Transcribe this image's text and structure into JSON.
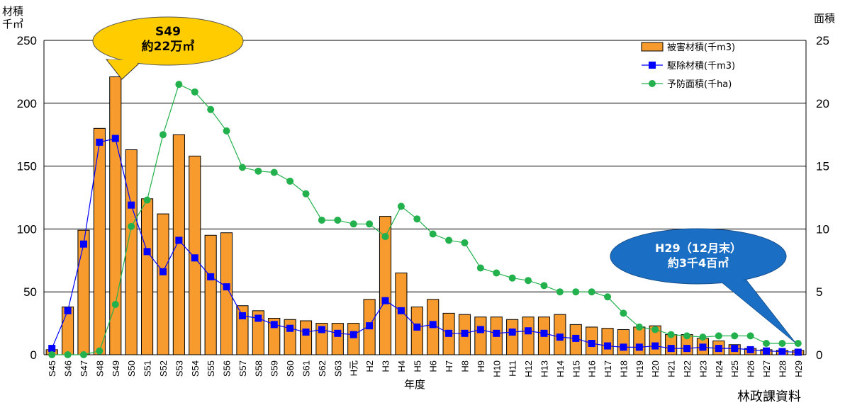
{
  "chart_data": {
    "type": "bar",
    "categories": [
      "S45",
      "S46",
      "S47",
      "S48",
      "S49",
      "S50",
      "S51",
      "S52",
      "S53",
      "S54",
      "S55",
      "S56",
      "S57",
      "S58",
      "S59",
      "S60",
      "S61",
      "S62",
      "S63",
      "H元",
      "H2",
      "H3",
      "H4",
      "H5",
      "H6",
      "H7",
      "H8",
      "H9",
      "H10",
      "H11",
      "H12",
      "H13",
      "H14",
      "H15",
      "H16",
      "H17",
      "H18",
      "H19",
      "H20",
      "H21",
      "H22",
      "H23",
      "H24",
      "H25",
      "H26",
      "H27",
      "H28",
      "H29"
    ],
    "xlabel": "年度",
    "ylabel_left": [
      "材積",
      "千㎥"
    ],
    "ylabel_right": "面積",
    "ylim_left": [
      0,
      250
    ],
    "ylim_right": [
      0,
      25
    ],
    "yticks_left": [
      "0",
      "50",
      "100",
      "150",
      "200",
      "250"
    ],
    "yticks_right": [
      "0",
      "5",
      "10",
      "15",
      "20",
      "25"
    ],
    "grid": true,
    "legend_position": "top-right",
    "series": [
      {
        "name": "被害材積(千m3)",
        "type": "bar",
        "axis": "left",
        "color": "#f79b2e",
        "values": [
          4,
          38,
          99,
          180,
          221,
          163,
          124,
          112,
          175,
          158,
          95,
          97,
          39,
          35,
          29,
          28,
          27,
          25,
          25,
          25,
          44,
          110,
          65,
          38,
          44,
          33,
          32,
          30,
          30,
          28,
          30,
          30,
          32,
          24,
          22,
          21,
          20,
          22,
          23,
          16,
          16,
          13,
          11,
          8,
          5,
          4,
          3.5,
          3.4
        ]
      },
      {
        "name": "駆除材積(千m3)",
        "type": "line",
        "axis": "left",
        "color": "#0000ff",
        "values": [
          5,
          35,
          88,
          169,
          172,
          119,
          82,
          66,
          91,
          77,
          62,
          54,
          31,
          29,
          24,
          21,
          18,
          20,
          17,
          16,
          23,
          43,
          35,
          22,
          24,
          17,
          17,
          20,
          17,
          18,
          19,
          17,
          14,
          13,
          9,
          7,
          6,
          6,
          7,
          5,
          5,
          6,
          5,
          5,
          4,
          3,
          2.5,
          2
        ]
      },
      {
        "name": "予防面積(千ha)",
        "type": "line",
        "axis": "right",
        "color": "#22b14c",
        "values": [
          0,
          0,
          0,
          0.3,
          4,
          10.2,
          12.3,
          17.5,
          21.5,
          20.9,
          19.5,
          17.8,
          14.9,
          14.6,
          14.5,
          13.8,
          12.8,
          10.7,
          10.7,
          10.4,
          10.4,
          9.4,
          11.8,
          10.8,
          9.6,
          9.1,
          8.9,
          6.9,
          6.5,
          6.1,
          5.9,
          5.5,
          5.0,
          5.0,
          5.0,
          4.6,
          3.3,
          2.2,
          2.0,
          1.6,
          1.5,
          1.4,
          1.5,
          1.5,
          1.5,
          0.9,
          0.9,
          0.9
        ]
      }
    ],
    "callouts": [
      {
        "text": [
          "S49",
          "約22万㎥"
        ],
        "color": "#ffcc00"
      },
      {
        "text": [
          "H29（12月末）",
          "約3千4百㎥"
        ],
        "color": "#1a6fc4"
      }
    ]
  },
  "source_note": "林政課資料"
}
